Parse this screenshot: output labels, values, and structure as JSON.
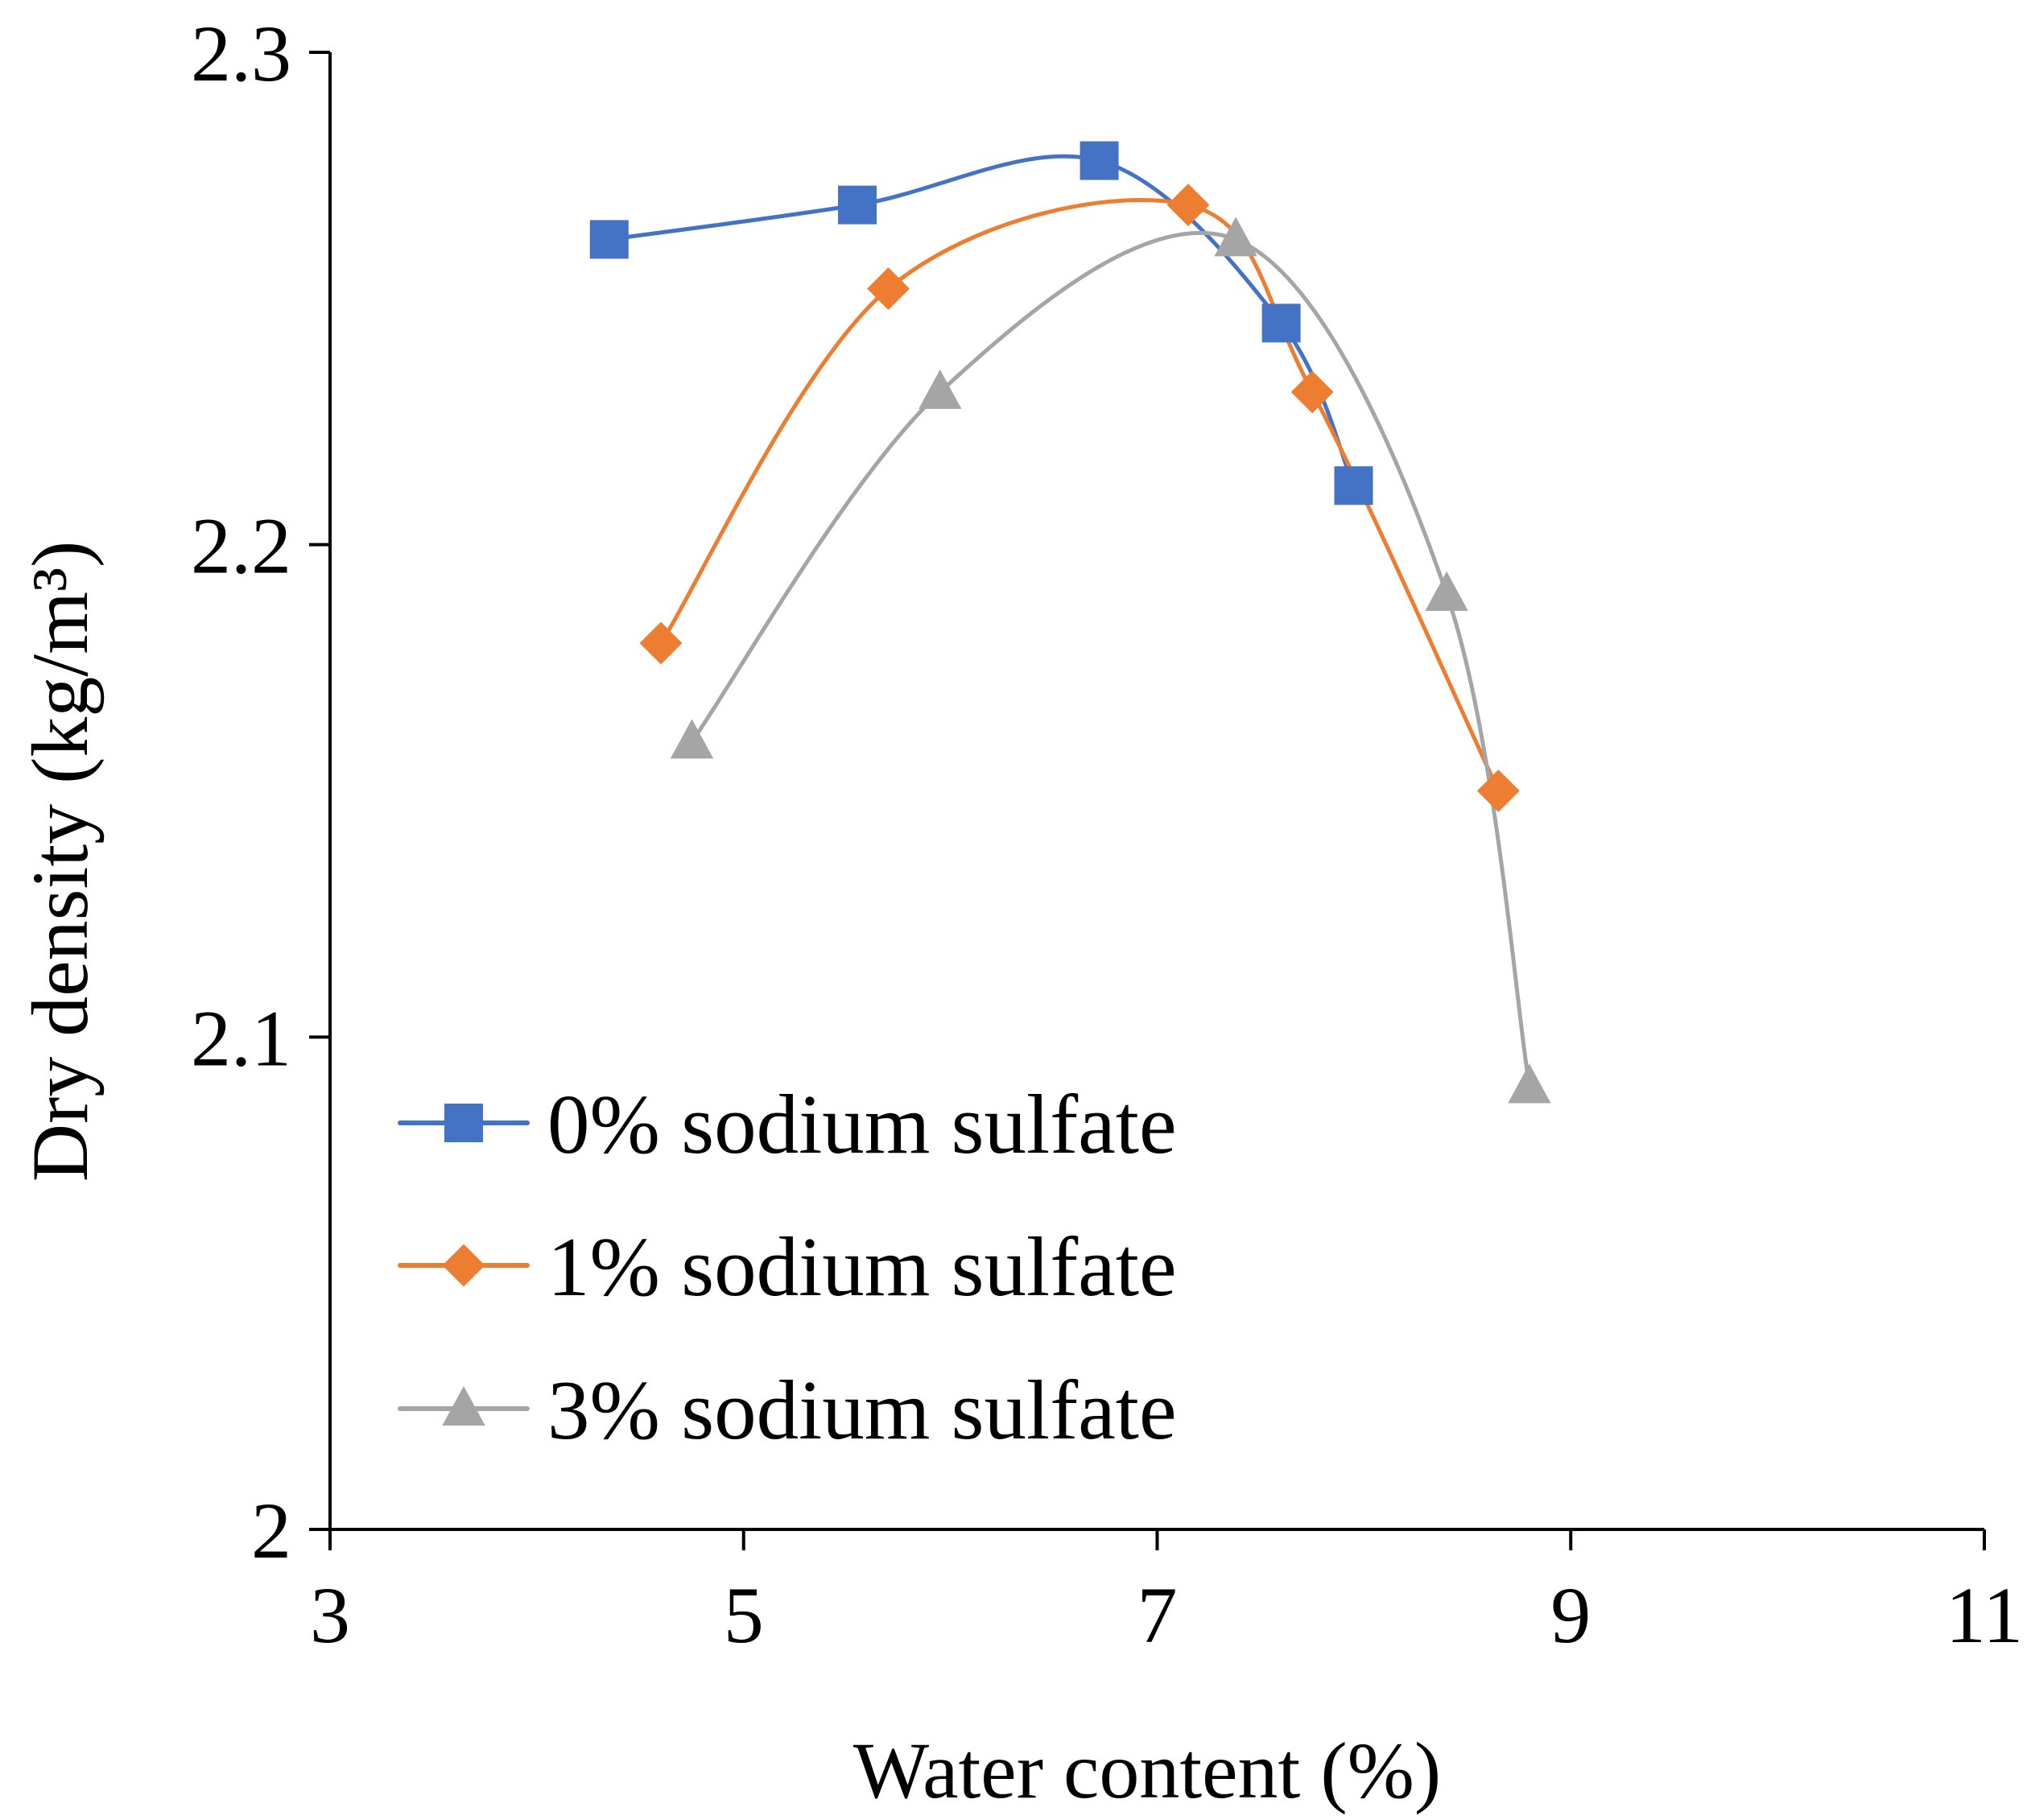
{
  "chart_data": {
    "type": "line",
    "xlabel": "Water content (%)",
    "ylabel": "Dry density (kg/m³)",
    "xlim": [
      3,
      11
    ],
    "ylim": [
      2.0,
      2.3
    ],
    "xticks": [
      3,
      5,
      7,
      9,
      11
    ],
    "yticks": [
      2.0,
      2.1,
      2.2,
      2.3
    ],
    "xtick_labels": [
      "3",
      "5",
      "7",
      "9",
      "11"
    ],
    "ytick_labels": [
      "2",
      "2.1",
      "2.2",
      "2.3"
    ],
    "smooth": true,
    "grid": false,
    "legend_position": "bottom-left",
    "series": [
      {
        "name": "0% sodium sulfate",
        "marker": "square",
        "color": "#4472C4",
        "x": [
          4.35,
          5.55,
          6.72,
          7.6,
          7.95
        ],
        "y": [
          2.262,
          2.269,
          2.278,
          2.245,
          2.212
        ]
      },
      {
        "name": "1% sodium sulfate",
        "marker": "diamond",
        "color": "#ED7D31",
        "x": [
          4.6,
          5.7,
          7.15,
          7.75,
          8.65
        ],
        "y": [
          2.18,
          2.252,
          2.269,
          2.231,
          2.15
        ]
      },
      {
        "name": "3% sodium sulfate",
        "marker": "triangle",
        "color": "#A5A5A5",
        "x": [
          4.75,
          5.95,
          7.38,
          8.4,
          8.8
        ],
        "y": [
          2.16,
          2.231,
          2.262,
          2.19,
          2.09
        ]
      }
    ]
  }
}
